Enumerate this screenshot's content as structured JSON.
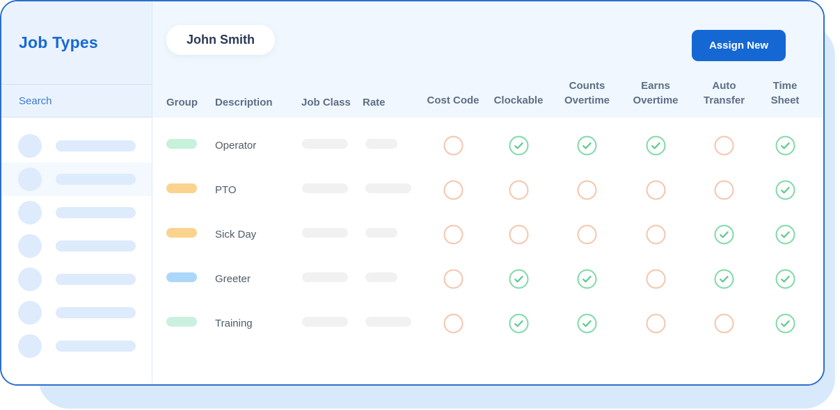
{
  "sidebar": {
    "title": "Job Types",
    "search_placeholder": "Search",
    "skeleton_items": 7,
    "highlighted_item_index": 1
  },
  "header": {
    "employee_name": "John Smith",
    "assign_new_label": "Assign New"
  },
  "table": {
    "columns": [
      {
        "label": "Group",
        "type": "text"
      },
      {
        "label": "Description",
        "type": "text"
      },
      {
        "label": "Job Class",
        "type": "text"
      },
      {
        "label": "Rate",
        "type": "text"
      },
      {
        "label": "Cost Code",
        "type": "bool",
        "key": "cost_code"
      },
      {
        "label": "Clockable",
        "type": "bool",
        "key": "clockable"
      },
      {
        "label": "Counts Overtime",
        "type": "bool",
        "key": "counts_overtime",
        "stacked": true
      },
      {
        "label": "Earns Overtime",
        "type": "bool",
        "key": "earns_overtime",
        "stacked": true
      },
      {
        "label": "Auto Transfer",
        "type": "bool",
        "key": "auto_transfer",
        "stacked": true
      },
      {
        "label": "Time Sheet",
        "type": "bool",
        "key": "time_sheet",
        "stacked": true
      }
    ],
    "rows": [
      {
        "description": "Operator",
        "group_color": "#C6F1DA",
        "rate_skeleton": "narrow",
        "cost_code": false,
        "clockable": true,
        "counts_overtime": true,
        "earns_overtime": true,
        "auto_transfer": false,
        "time_sheet": true
      },
      {
        "description": "PTO",
        "group_color": "#FAD38F",
        "rate_skeleton": "wide",
        "cost_code": false,
        "clockable": false,
        "counts_overtime": false,
        "earns_overtime": false,
        "auto_transfer": false,
        "time_sheet": true
      },
      {
        "description": "Sick Day",
        "group_color": "#FAD38F",
        "rate_skeleton": "narrow",
        "cost_code": false,
        "clockable": false,
        "counts_overtime": false,
        "earns_overtime": false,
        "auto_transfer": true,
        "time_sheet": true
      },
      {
        "description": "Greeter",
        "group_color": "#ABD8FA",
        "rate_skeleton": "narrow",
        "cost_code": false,
        "clockable": true,
        "counts_overtime": true,
        "earns_overtime": false,
        "auto_transfer": true,
        "time_sheet": true
      },
      {
        "description": "Training",
        "group_color": "#CBF0DF",
        "rate_skeleton": "wide",
        "cost_code": false,
        "clockable": true,
        "counts_overtime": true,
        "earns_overtime": false,
        "auto_transfer": false,
        "time_sheet": true
      }
    ]
  },
  "colors": {
    "accent_blue": "#1568D3",
    "title_blue": "#1769D4",
    "card_border": "#2A6ECD",
    "checked_ring_green": "#7FDAA6",
    "checked_mark_green": "#58CB8D",
    "unchecked_ring_orange": "#F4C5AE",
    "search_icon_blue": "#A9CBEF"
  },
  "icons": {
    "search": "search-icon",
    "checked": "check-circle-icon",
    "unchecked": "empty-circle-icon"
  }
}
